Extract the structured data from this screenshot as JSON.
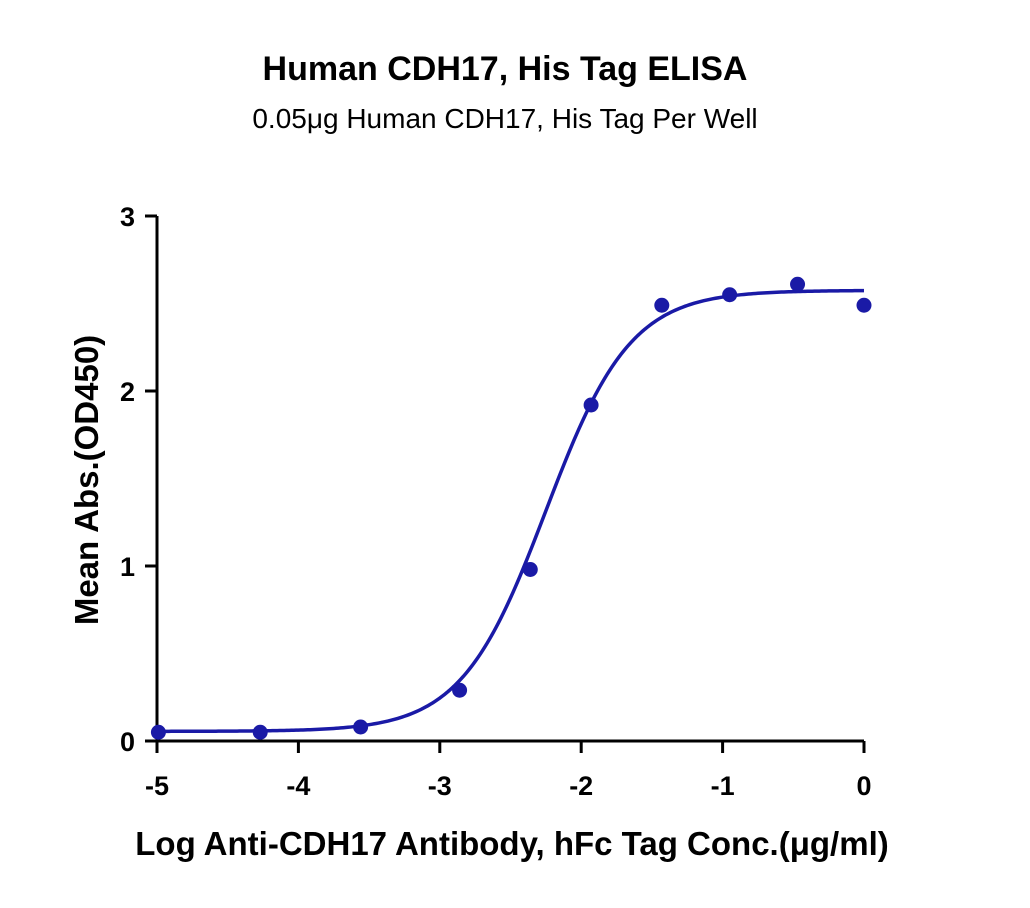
{
  "chart_data": {
    "type": "scatter",
    "title": "Human CDH17, His Tag ELISA",
    "subtitle": "0.05μg Human CDH17, His Tag Per Well",
    "xlabel": "Log Anti-CDH17 Antibody, hFc Tag Conc.(μg/ml)",
    "ylabel": "Mean Abs.(OD450)",
    "xlim": [
      -5,
      0
    ],
    "ylim": [
      0,
      3
    ],
    "x_ticks": [
      -5,
      -4,
      -3,
      -2,
      -1,
      0
    ],
    "x_tick_labels": [
      "-5",
      "-4",
      "-3",
      "-2",
      "-1",
      "0"
    ],
    "y_ticks": [
      0,
      1,
      2,
      3
    ],
    "y_tick_labels": [
      "0",
      "1",
      "2",
      "3"
    ],
    "grid": false,
    "series": [
      {
        "x": [
          -4.99,
          -4.27,
          -3.56,
          -2.86,
          -2.36,
          -1.93,
          -1.43,
          -0.95,
          -0.47,
          0.0
        ],
        "y": [
          0.05,
          0.05,
          0.08,
          0.29,
          0.98,
          1.92,
          2.49,
          2.55,
          2.61,
          2.49
        ],
        "color": "#1a1aa6"
      }
    ],
    "fit_curve": {
      "model": "4PL",
      "bottom": 0.055,
      "top": 2.575,
      "logEC50": -2.25,
      "hill": 1.45,
      "color": "#1a1aa6"
    }
  }
}
